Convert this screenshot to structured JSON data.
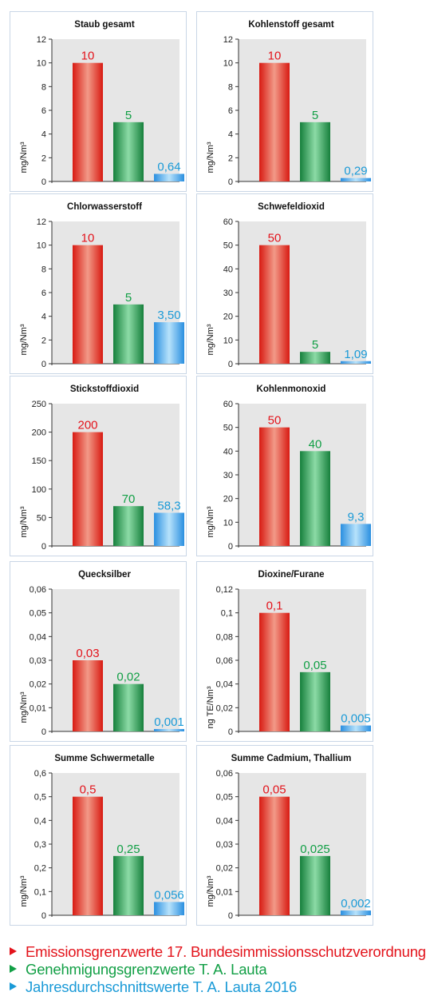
{
  "colors": {
    "limit_emission": "#e3131b",
    "limit_permit": "#119f45",
    "annual_average": "#1a9ad7"
  },
  "legend": [
    {
      "label": "Emissionsgrenzwerte 17. Bundesimmissionsschutzverordnung",
      "color": "#e3131b"
    },
    {
      "label": "Genehmigungsgrenzwerte T. A. Lauta",
      "color": "#119f45"
    },
    {
      "label": "Jahresdurchschnittswerte T. A. Lauta 2016",
      "color": "#1a9ad7"
    }
  ],
  "chart_data": [
    {
      "type": "bar",
      "title": "Staub gesamt",
      "ylabel": "mg/Nm³",
      "ylim": [
        0,
        12
      ],
      "yticks": [
        "0",
        "2",
        "4",
        "6",
        "8",
        "10",
        "12"
      ],
      "ytick_values": [
        0,
        2,
        4,
        6,
        8,
        10,
        12
      ],
      "values": [
        10,
        5,
        0.64
      ],
      "labels": [
        "10",
        "5",
        "0,64"
      ]
    },
    {
      "type": "bar",
      "title": "Kohlenstoff gesamt",
      "ylabel": "mg/Nm³",
      "ylim": [
        0,
        12
      ],
      "yticks": [
        "0",
        "2",
        "4",
        "6",
        "8",
        "10",
        "12"
      ],
      "ytick_values": [
        0,
        2,
        4,
        6,
        8,
        10,
        12
      ],
      "values": [
        10,
        5,
        0.29
      ],
      "labels": [
        "10",
        "5",
        "0,29"
      ]
    },
    {
      "type": "bar",
      "title": "Chlorwasserstoff",
      "ylabel": "mg/Nm³",
      "ylim": [
        0,
        12
      ],
      "yticks": [
        "0",
        "2",
        "4",
        "6",
        "8",
        "10",
        "12"
      ],
      "ytick_values": [
        0,
        2,
        4,
        6,
        8,
        10,
        12
      ],
      "values": [
        10,
        5,
        3.5
      ],
      "labels": [
        "10",
        "5",
        "3,50"
      ]
    },
    {
      "type": "bar",
      "title": "Schwefeldioxid",
      "ylabel": "mg/Nm³",
      "ylim": [
        0,
        60
      ],
      "yticks": [
        "0",
        "10",
        "20",
        "30",
        "40",
        "50",
        "60"
      ],
      "ytick_values": [
        0,
        10,
        20,
        30,
        40,
        50,
        60
      ],
      "values": [
        50,
        5,
        1.09
      ],
      "labels": [
        "50",
        "5",
        "1,09"
      ]
    },
    {
      "type": "bar",
      "title": "Stickstoffdioxid",
      "ylabel": "mg/Nm³",
      "ylim": [
        0,
        250
      ],
      "yticks": [
        "0",
        "50",
        "100",
        "150",
        "200",
        "250"
      ],
      "ytick_values": [
        0,
        50,
        100,
        150,
        200,
        250
      ],
      "values": [
        200,
        70,
        58.3
      ],
      "labels": [
        "200",
        "70",
        "58,3"
      ]
    },
    {
      "type": "bar",
      "title": "Kohlenmonoxid",
      "ylabel": "mg/Nm³",
      "ylim": [
        0,
        60
      ],
      "yticks": [
        "0",
        "10",
        "20",
        "30",
        "40",
        "50",
        "60"
      ],
      "ytick_values": [
        0,
        10,
        20,
        30,
        40,
        50,
        60
      ],
      "values": [
        50,
        40,
        9.3
      ],
      "labels": [
        "50",
        "40",
        "9,3"
      ]
    },
    {
      "type": "bar",
      "title": "Quecksilber",
      "ylabel": "mg/Nm³",
      "ylim": [
        0,
        0.06
      ],
      "yticks": [
        "0",
        "0,01",
        "0,02",
        "0,03",
        "0,04",
        "0,05",
        "0,06"
      ],
      "ytick_values": [
        0,
        0.01,
        0.02,
        0.03,
        0.04,
        0.05,
        0.06
      ],
      "values": [
        0.03,
        0.02,
        0.001
      ],
      "labels": [
        "0,03",
        "0,02",
        "0,001"
      ]
    },
    {
      "type": "bar",
      "title": "Dioxine/Furane",
      "ylabel": "ng TE/Nm³",
      "ylim": [
        0,
        0.12
      ],
      "yticks": [
        "0",
        "0,02",
        "0,04",
        "0,06",
        "0,08",
        "0,1",
        "0,12"
      ],
      "ytick_values": [
        0,
        0.02,
        0.04,
        0.06,
        0.08,
        0.1,
        0.12
      ],
      "values": [
        0.1,
        0.05,
        0.005
      ],
      "labels": [
        "0,1",
        "0,05",
        "0,005"
      ]
    },
    {
      "type": "bar",
      "title": "Summe Schwermetalle",
      "ylabel": "mg/Nm³",
      "ylim": [
        0,
        0.6
      ],
      "yticks": [
        "0",
        "0,1",
        "0,2",
        "0,3",
        "0,4",
        "0,5",
        "0,6"
      ],
      "ytick_values": [
        0,
        0.1,
        0.2,
        0.3,
        0.4,
        0.5,
        0.6
      ],
      "values": [
        0.5,
        0.25,
        0.056
      ],
      "labels": [
        "0,5",
        "0,25",
        "0,056"
      ]
    },
    {
      "type": "bar",
      "title": "Summe Cadmium, Thallium",
      "ylabel": "mg/Nm³",
      "ylim": [
        0,
        0.06
      ],
      "yticks": [
        "0",
        "0,01",
        "0,02",
        "0,03",
        "0,04",
        "0,05",
        "0,06"
      ],
      "ytick_values": [
        0,
        0.01,
        0.02,
        0.03,
        0.04,
        0.05,
        0.06
      ],
      "values": [
        0.05,
        0.025,
        0.002
      ],
      "labels": [
        "0,05",
        "0,025",
        "0,002"
      ]
    }
  ]
}
